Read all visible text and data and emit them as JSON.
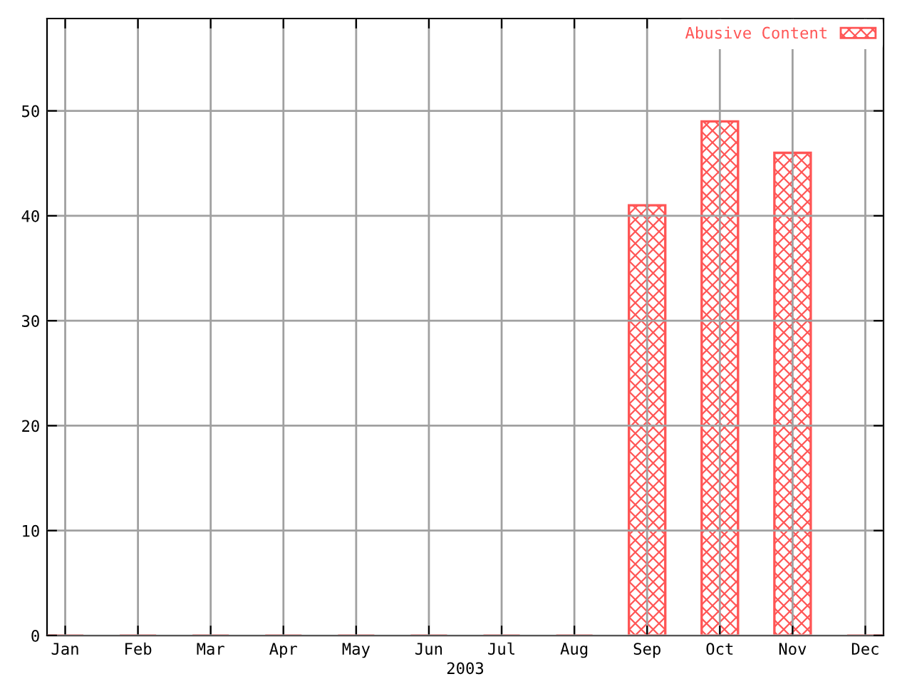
{
  "chart_data": {
    "type": "bar",
    "xlabel": "2003",
    "categories": [
      "Jan",
      "Feb",
      "Mar",
      "Apr",
      "May",
      "Jun",
      "Jul",
      "Aug",
      "Sep",
      "Oct",
      "Nov",
      "Dec"
    ],
    "series": [
      {
        "name": "Abusive Content",
        "color": "#ff5555",
        "values": [
          0,
          0,
          0,
          0,
          0,
          0,
          0,
          0,
          41,
          49,
          46,
          0
        ]
      }
    ],
    "ylim": [
      0,
      58.8
    ],
    "yticks": [
      0,
      10,
      20,
      30,
      40,
      50
    ],
    "grid": true,
    "legend": "top right"
  }
}
